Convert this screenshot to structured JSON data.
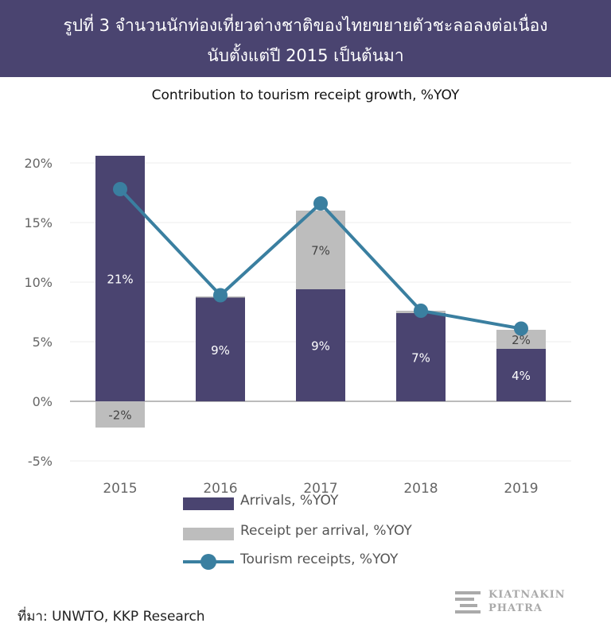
{
  "header": {
    "title_line1": "รูปที่ 3 จำนวนนักท่องเที่ยวต่างชาติของไทยขยายตัวชะลอลงต่อเนื่อง",
    "title_line2": "นับตั้งแต่ปี 2015 เป็นต้นมา"
  },
  "colors": {
    "header_bg": "#4a4470",
    "arrivals": "#4a4470",
    "receipt_per_arrival": "#bdbdbd",
    "tourism_receipts": "#3a7fa0"
  },
  "chart_data": {
    "type": "bar",
    "title": "Contribution to tourism receipt growth, %YOY",
    "categories": [
      "2015",
      "2016",
      "2017",
      "2018",
      "2019"
    ],
    "ylim": [
      -5,
      20
    ],
    "yticks": [
      20,
      15,
      10,
      5,
      0,
      -5
    ],
    "ytick_labels": [
      "20%",
      "15%",
      "10%",
      "5%",
      "0%",
      "-5%"
    ],
    "grid": true,
    "series": [
      {
        "name": "Arrivals, %YOY",
        "kind": "stacked-bar",
        "values": [
          20.6,
          8.7,
          9.4,
          7.4,
          4.4
        ],
        "labels": [
          "21%",
          "9%",
          "9%",
          "7%",
          "4%"
        ]
      },
      {
        "name": "Receipt per arrival, %YOY",
        "kind": "stacked-bar",
        "values": [
          -2.2,
          0.1,
          6.6,
          0.2,
          1.6
        ],
        "labels": [
          "-2%",
          "",
          "7%",
          "",
          "2%"
        ]
      },
      {
        "name": "Tourism receipts, %YOY",
        "kind": "line",
        "values": [
          17.8,
          8.9,
          16.6,
          7.6,
          6.1
        ]
      }
    ],
    "legend_position": "bottom"
  },
  "source": "ที่มา: UNWTO, KKP Research",
  "logo": {
    "line1": "KIATNAKIN",
    "line2": "PHATRA"
  }
}
